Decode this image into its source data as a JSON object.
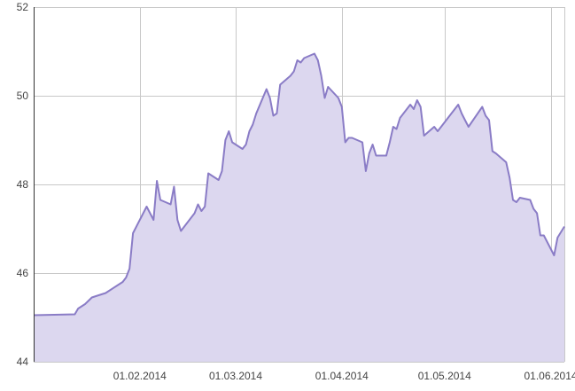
{
  "chart_data": {
    "type": "area",
    "title": "",
    "xlabel": "",
    "ylabel": "",
    "ylim": [
      44,
      52
    ],
    "xlim": [
      "2014-01-01",
      "2014-06-05"
    ],
    "grid": true,
    "legend": "none",
    "colors": {
      "line": "#8a7cc6",
      "fill": "#dcd7ef",
      "grid": "#c8c8c8",
      "axis": "#333333",
      "text": "#444444"
    },
    "y_ticks": [
      {
        "value": 44,
        "label": "44"
      },
      {
        "value": 46,
        "label": "46"
      },
      {
        "value": 48,
        "label": "48"
      },
      {
        "value": 50,
        "label": "50"
      },
      {
        "value": 52,
        "label": "52"
      }
    ],
    "x_ticks": [
      {
        "date": "2014-02-01",
        "label": "01.02.2014"
      },
      {
        "date": "2014-03-01",
        "label": "01.03.2014"
      },
      {
        "date": "2014-04-01",
        "label": "01.04.2014"
      },
      {
        "date": "2014-05-01",
        "label": "01.05.2014"
      },
      {
        "date": "2014-06-01",
        "label": "01.06.2014"
      }
    ],
    "series": [
      {
        "x": [
          "2014-01-01",
          "2014-01-13",
          "2014-01-14",
          "2014-01-16",
          "2014-01-18",
          "2014-01-20",
          "2014-01-22",
          "2014-01-27",
          "2014-01-28",
          "2014-01-29",
          "2014-01-30",
          "2014-02-03",
          "2014-02-04",
          "2014-02-05",
          "2014-02-06",
          "2014-02-07",
          "2014-02-10",
          "2014-02-11",
          "2014-02-12",
          "2014-02-13",
          "2014-02-17",
          "2014-02-18",
          "2014-02-19",
          "2014-02-20",
          "2014-02-21",
          "2014-02-24",
          "2014-02-25",
          "2014-02-26",
          "2014-02-27",
          "2014-02-28",
          "2014-03-03",
          "2014-03-04",
          "2014-03-05",
          "2014-03-06",
          "2014-03-07",
          "2014-03-10",
          "2014-03-11",
          "2014-03-12",
          "2014-03-13",
          "2014-03-14",
          "2014-03-17",
          "2014-03-18",
          "2014-03-19",
          "2014-03-20",
          "2014-03-21",
          "2014-03-24",
          "2014-03-25",
          "2014-03-26",
          "2014-03-27",
          "2014-03-28",
          "2014-03-31",
          "2014-04-01",
          "2014-04-02",
          "2014-04-03",
          "2014-04-04",
          "2014-04-07",
          "2014-04-08",
          "2014-04-09",
          "2014-04-10",
          "2014-04-11",
          "2014-04-14",
          "2014-04-15",
          "2014-04-16",
          "2014-04-17",
          "2014-04-18",
          "2014-04-21",
          "2014-04-22",
          "2014-04-23",
          "2014-04-24",
          "2014-04-25",
          "2014-04-28",
          "2014-04-29",
          "2014-04-30",
          "2014-05-05",
          "2014-05-06",
          "2014-05-07",
          "2014-05-08",
          "2014-05-12",
          "2014-05-13",
          "2014-05-14",
          "2014-05-15",
          "2014-05-16",
          "2014-05-19",
          "2014-05-20",
          "2014-05-21",
          "2014-05-22",
          "2014-05-23",
          "2014-05-26",
          "2014-05-27",
          "2014-05-28",
          "2014-05-29",
          "2014-05-30",
          "2014-06-02",
          "2014-06-03",
          "2014-06-05"
        ],
        "values": [
          45.05,
          45.07,
          45.2,
          45.3,
          45.45,
          45.5,
          45.55,
          45.8,
          45.9,
          46.1,
          46.9,
          47.5,
          47.35,
          47.2,
          48.08,
          47.65,
          47.55,
          47.95,
          47.2,
          46.95,
          47.35,
          47.55,
          47.4,
          47.5,
          48.25,
          48.1,
          48.3,
          49.0,
          49.2,
          48.95,
          48.8,
          48.9,
          49.2,
          49.35,
          49.6,
          50.15,
          49.95,
          49.55,
          49.6,
          50.25,
          50.45,
          50.55,
          50.8,
          50.75,
          50.85,
          50.95,
          50.8,
          50.45,
          49.95,
          50.2,
          49.95,
          49.75,
          48.95,
          49.05,
          49.05,
          48.95,
          48.3,
          48.7,
          48.9,
          48.65,
          48.65,
          48.95,
          49.3,
          49.25,
          49.5,
          49.8,
          49.7,
          49.9,
          49.75,
          49.1,
          49.3,
          49.2,
          49.3,
          49.8,
          49.6,
          49.45,
          49.3,
          49.75,
          49.55,
          49.45,
          48.75,
          48.7,
          48.5,
          48.15,
          47.65,
          47.6,
          47.7,
          47.65,
          47.45,
          47.35,
          46.85,
          46.85,
          46.4,
          46.8,
          47.05
        ]
      }
    ]
  }
}
